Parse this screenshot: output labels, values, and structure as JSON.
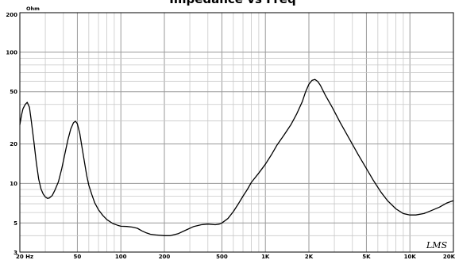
{
  "chart_data": {
    "type": "line",
    "title": "Impedance vs Freq",
    "y_unit_label": "Ohm",
    "watermark": "LMS",
    "x_scale": "log",
    "y_scale": "log",
    "xlim": [
      20,
      20000
    ],
    "ylim": [
      3,
      200
    ],
    "grid": true,
    "x_tick_labels": [
      {
        "value": 20,
        "label": "20 Hz"
      },
      {
        "value": 50,
        "label": "50"
      },
      {
        "value": 100,
        "label": "100"
      },
      {
        "value": 200,
        "label": "200"
      },
      {
        "value": 500,
        "label": "500"
      },
      {
        "value": 1000,
        "label": "1K"
      },
      {
        "value": 2000,
        "label": "2K"
      },
      {
        "value": 5000,
        "label": "5K"
      },
      {
        "value": 10000,
        "label": "10K"
      },
      {
        "value": 20000,
        "label": "20K"
      }
    ],
    "y_tick_labels": [
      {
        "value": 200,
        "label": "200"
      },
      {
        "value": 100,
        "label": "100"
      },
      {
        "value": 50,
        "label": "50"
      },
      {
        "value": 20,
        "label": "20"
      },
      {
        "value": 10,
        "label": "10"
      },
      {
        "value": 5,
        "label": "5"
      },
      {
        "value": 3,
        "label": "3"
      }
    ],
    "series": [
      {
        "color": "#000000",
        "points": [
          [
            20,
            28
          ],
          [
            20.5,
            33
          ],
          [
            21,
            37
          ],
          [
            21.8,
            40
          ],
          [
            22.5,
            41.5
          ],
          [
            23.3,
            38
          ],
          [
            24,
            30
          ],
          [
            25,
            21
          ],
          [
            26,
            14.5
          ],
          [
            27,
            10.8
          ],
          [
            28,
            9.1
          ],
          [
            29,
            8.3
          ],
          [
            30,
            7.9
          ],
          [
            31,
            7.7
          ],
          [
            32,
            7.75
          ],
          [
            33.5,
            8.1
          ],
          [
            35,
            8.9
          ],
          [
            37,
            10.3
          ],
          [
            39,
            13
          ],
          [
            41,
            16.8
          ],
          [
            43,
            21.5
          ],
          [
            45,
            26
          ],
          [
            47,
            29
          ],
          [
            48.5,
            29.8
          ],
          [
            50,
            28.5
          ],
          [
            52,
            24
          ],
          [
            54,
            18.5
          ],
          [
            56,
            14.5
          ],
          [
            58,
            11.5
          ],
          [
            60,
            9.7
          ],
          [
            63,
            8.2
          ],
          [
            66,
            7.1
          ],
          [
            70,
            6.3
          ],
          [
            75,
            5.7
          ],
          [
            80,
            5.3
          ],
          [
            88,
            4.95
          ],
          [
            95,
            4.8
          ],
          [
            100,
            4.72
          ],
          [
            110,
            4.7
          ],
          [
            120,
            4.65
          ],
          [
            130,
            4.55
          ],
          [
            140,
            4.35
          ],
          [
            150,
            4.2
          ],
          [
            160,
            4.1
          ],
          [
            175,
            4.05
          ],
          [
            200,
            4.0
          ],
          [
            220,
            4.0
          ],
          [
            250,
            4.15
          ],
          [
            280,
            4.4
          ],
          [
            320,
            4.7
          ],
          [
            360,
            4.85
          ],
          [
            400,
            4.9
          ],
          [
            450,
            4.85
          ],
          [
            480,
            4.9
          ],
          [
            500,
            5.0
          ],
          [
            550,
            5.4
          ],
          [
            600,
            6.1
          ],
          [
            650,
            7.0
          ],
          [
            700,
            8.0
          ],
          [
            750,
            9.0
          ],
          [
            800,
            10.2
          ],
          [
            900,
            12.0
          ],
          [
            1000,
            14.0
          ],
          [
            1100,
            16.5
          ],
          [
            1200,
            19.5
          ],
          [
            1350,
            23.5
          ],
          [
            1500,
            28.0
          ],
          [
            1650,
            34.0
          ],
          [
            1800,
            42.0
          ],
          [
            1900,
            50.0
          ],
          [
            2000,
            57.0
          ],
          [
            2100,
            61.0
          ],
          [
            2200,
            62.0
          ],
          [
            2300,
            60.0
          ],
          [
            2400,
            56.0
          ],
          [
            2600,
            47.0
          ],
          [
            2900,
            38.0
          ],
          [
            3300,
            29.0
          ],
          [
            3800,
            22.0
          ],
          [
            4400,
            16.5
          ],
          [
            5000,
            13.0
          ],
          [
            5600,
            10.5
          ],
          [
            6300,
            8.6
          ],
          [
            7000,
            7.4
          ],
          [
            8000,
            6.4
          ],
          [
            9000,
            5.9
          ],
          [
            10000,
            5.75
          ],
          [
            11000,
            5.75
          ],
          [
            12500,
            5.9
          ],
          [
            14000,
            6.2
          ],
          [
            16000,
            6.6
          ],
          [
            18000,
            7.1
          ],
          [
            20000,
            7.4
          ]
        ]
      }
    ]
  }
}
